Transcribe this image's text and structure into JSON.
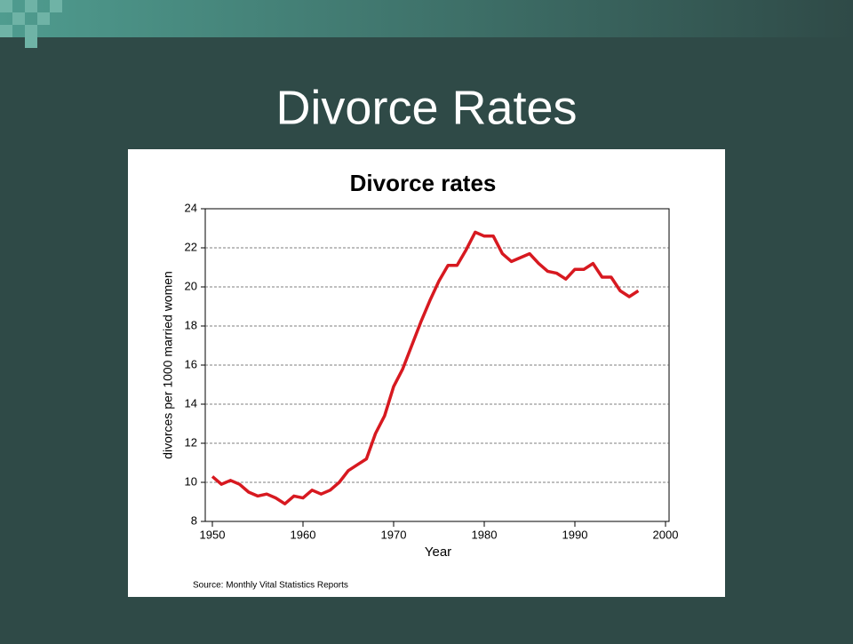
{
  "slide": {
    "title": "Divorce Rates"
  },
  "chart_data": {
    "type": "line",
    "title": "Divorce rates",
    "x_label": "Year",
    "y_label": "divorces per 1000 married women",
    "source": "Source: Monthly Vital Statistics Reports",
    "x": [
      1950,
      1951,
      1952,
      1953,
      1954,
      1955,
      1956,
      1957,
      1958,
      1959,
      1960,
      1961,
      1962,
      1963,
      1964,
      1965,
      1966,
      1967,
      1968,
      1969,
      1970,
      1971,
      1972,
      1973,
      1974,
      1975,
      1976,
      1977,
      1978,
      1979,
      1980,
      1981,
      1982,
      1983,
      1984,
      1985,
      1986,
      1987,
      1988,
      1989,
      1990,
      1991,
      1992,
      1993,
      1994,
      1995,
      1996,
      1997
    ],
    "values": [
      10.3,
      9.9,
      10.1,
      9.9,
      9.5,
      9.3,
      9.4,
      9.2,
      8.9,
      9.3,
      9.2,
      9.6,
      9.4,
      9.6,
      10.0,
      10.6,
      10.9,
      11.2,
      12.5,
      13.4,
      14.9,
      15.8,
      17.0,
      18.2,
      19.3,
      20.3,
      21.1,
      21.1,
      21.9,
      22.8,
      22.6,
      22.6,
      21.7,
      21.3,
      21.5,
      21.7,
      21.2,
      20.8,
      20.7,
      20.4,
      20.9,
      20.9,
      21.2,
      20.5,
      20.5,
      19.8,
      19.5,
      19.8
    ],
    "color": "#d71920",
    "xlim": [
      1950,
      2000
    ],
    "xticks": [
      1950,
      1960,
      1970,
      1980,
      1990,
      2000
    ],
    "ylim": [
      8,
      24
    ],
    "yticks": [
      8,
      10,
      12,
      14,
      16,
      18,
      20,
      22,
      24
    ],
    "grid": true
  }
}
